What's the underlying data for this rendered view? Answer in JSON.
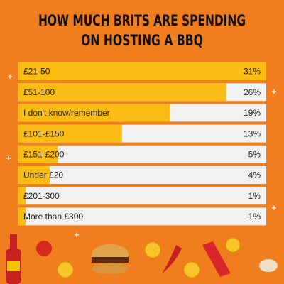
{
  "chart_data": {
    "type": "bar",
    "title": [
      "HOW MUCH BRITS ARE SPENDING",
      "ON HOSTING A BBQ"
    ],
    "categories": [
      "£21-50",
      "£51-100",
      "I don't know/remember",
      "£101-£150",
      "£151-£200",
      "Under £20",
      "£201-300",
      "More than £300"
    ],
    "values": [
      31,
      26,
      19,
      13,
      5,
      4,
      1,
      1
    ],
    "value_labels": [
      "31%",
      "26%",
      "19%",
      "13%",
      "5%",
      "4%",
      "1%",
      "1%"
    ],
    "color": "#fbbd14",
    "xlim": [
      0,
      31
    ]
  }
}
